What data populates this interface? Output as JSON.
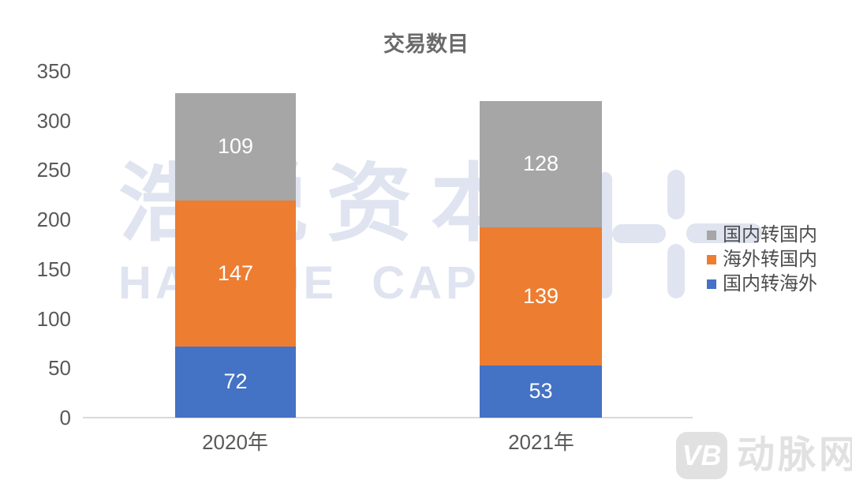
{
  "title": "交易数目",
  "chart_data": {
    "type": "bar",
    "stacked": true,
    "title": "交易数目",
    "categories": [
      "2020年",
      "2021年"
    ],
    "series": [
      {
        "name": "国内转海外",
        "color": "#4472c4",
        "values": [
          72,
          53
        ]
      },
      {
        "name": "海外转国内",
        "color": "#ed7d31",
        "values": [
          147,
          139
        ]
      },
      {
        "name": "国内转国内",
        "color": "#a6a6a6",
        "values": [
          109,
          128
        ]
      }
    ],
    "totals": [
      328,
      320
    ],
    "ylim": [
      0,
      350
    ],
    "yticks": [
      0,
      50,
      100,
      150,
      200,
      250,
      300,
      350
    ],
    "xlabel": "",
    "ylabel": "",
    "grid": false,
    "legend_position": "right",
    "legend_order_top_to_bottom": [
      "国内转国内",
      "海外转国内",
      "国内转海外"
    ],
    "data_label_color": "#ffffff"
  },
  "watermark": {
    "cjk_text": "浩悦资本",
    "latin_text": "HAOYUE CAPITAL",
    "logo_mark": "haoyue-h-plus-mark"
  },
  "footer_logo": {
    "glyph": "VB",
    "brand_text": "动脉网"
  },
  "colors": {
    "series_blue": "#4472c4",
    "series_orange": "#ed7d31",
    "series_gray": "#a6a6a6",
    "watermark": "#dfe4f0",
    "axis_line": "#d9d9d9",
    "tick_text": "#595959",
    "title_text": "#6a6a6a",
    "legend_text": "#4d4d4d",
    "footer_gray": "#e1e1e1",
    "data_label": "#ffffff",
    "background": "#ffffff"
  }
}
